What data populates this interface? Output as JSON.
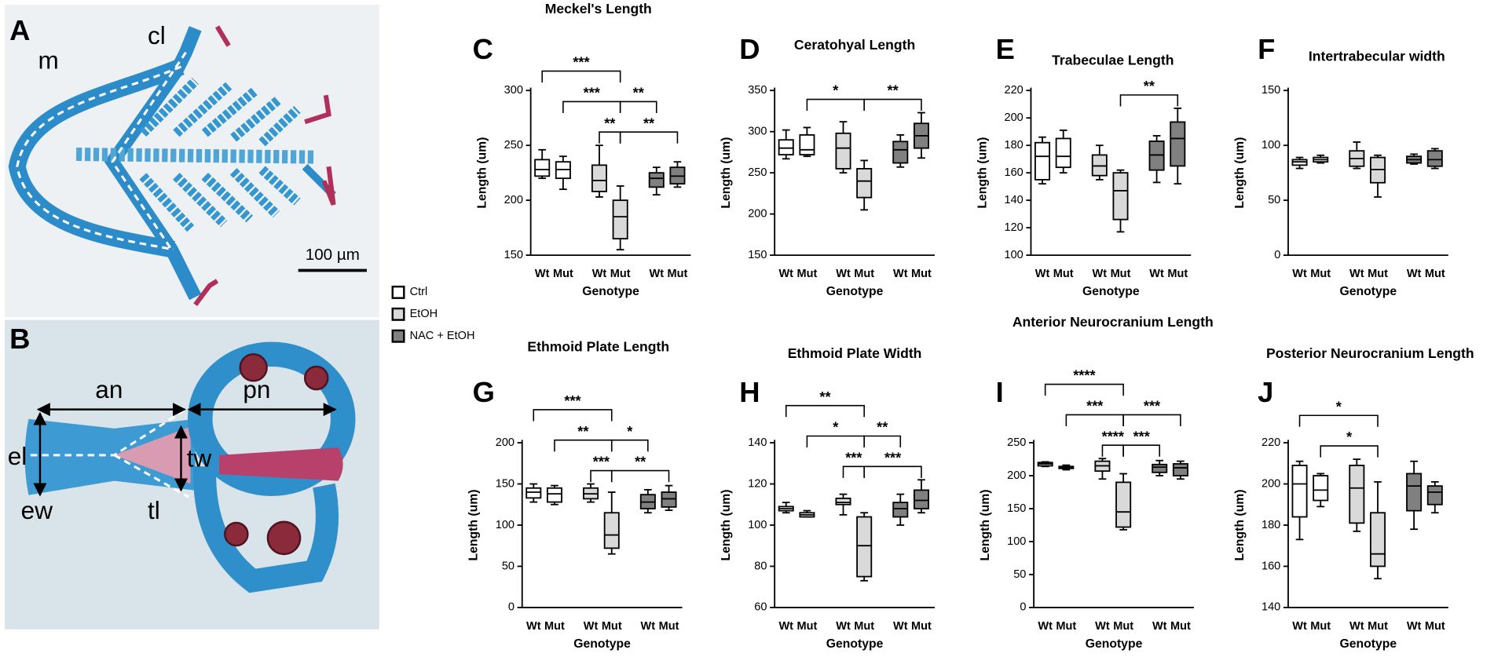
{
  "photo_a": {
    "letter": "A",
    "labels": [
      "m",
      "cl"
    ],
    "scale_bar": "100 µm"
  },
  "photo_b": {
    "letter": "B",
    "labels": [
      "an",
      "pn",
      "el",
      "ew",
      "tl",
      "tw"
    ]
  },
  "legend": [
    {
      "name": "Ctrl",
      "color": "#ffffff"
    },
    {
      "name": "EtOH",
      "color": "#d9d9d9"
    },
    {
      "name": "NAC + EtOH",
      "color": "#808080"
    }
  ],
  "chart_data": [
    {
      "type": "box",
      "panel": "C",
      "title": "Meckel's Length",
      "y_label": "Length (um)",
      "x_label": "Genotype",
      "categories": [
        "Wt",
        "Mut",
        "Wt",
        "Mut",
        "Wt",
        "Mut"
      ],
      "ylim": [
        150,
        300
      ],
      "yticks": [
        150,
        200,
        250,
        300
      ],
      "boxes": [
        {
          "min": 220,
          "q1": 222,
          "median": 228,
          "q3": 237,
          "max": 246
        },
        {
          "min": 210,
          "q1": 220,
          "median": 228,
          "q3": 235,
          "max": 240
        },
        {
          "min": 203,
          "q1": 208,
          "median": 218,
          "q3": 232,
          "max": 250
        },
        {
          "min": 155,
          "q1": 165,
          "median": 185,
          "q3": 200,
          "max": 213
        },
        {
          "min": 205,
          "q1": 212,
          "median": 220,
          "q3": 225,
          "max": 230
        },
        {
          "min": 212,
          "q1": 215,
          "median": 222,
          "q3": 230,
          "max": 235
        }
      ],
      "annotations": [
        {
          "label": "**",
          "from": 2,
          "to": 3
        },
        {
          "label": "**",
          "from": 3,
          "to": 5
        },
        {
          "label": "***",
          "from": 1,
          "to": 3
        },
        {
          "label": "**",
          "from": 3,
          "to": 4
        },
        {
          "label": "***",
          "from": 0,
          "to": 3
        }
      ]
    },
    {
      "type": "box",
      "panel": "D",
      "title": "Ceratohyal Length",
      "y_label": "Length (um)",
      "x_label": "Genotype",
      "categories": [
        "Wt",
        "Mut",
        "Wt",
        "Mut",
        "Wt",
        "Mut"
      ],
      "ylim": [
        150,
        350
      ],
      "yticks": [
        150,
        200,
        250,
        300,
        350
      ],
      "boxes": [
        {
          "min": 267,
          "q1": 272,
          "median": 280,
          "q3": 290,
          "max": 302
        },
        {
          "min": 270,
          "q1": 272,
          "median": 278,
          "q3": 296,
          "max": 305
        },
        {
          "min": 250,
          "q1": 255,
          "median": 280,
          "q3": 298,
          "max": 312
        },
        {
          "min": 205,
          "q1": 220,
          "median": 240,
          "q3": 255,
          "max": 265
        },
        {
          "min": 257,
          "q1": 262,
          "median": 278,
          "q3": 288,
          "max": 296
        },
        {
          "min": 268,
          "q1": 280,
          "median": 295,
          "q3": 310,
          "max": 323
        }
      ],
      "annotations": [
        {
          "label": "*",
          "from": 1,
          "to": 3
        },
        {
          "label": "**",
          "from": 3,
          "to": 5
        }
      ]
    },
    {
      "type": "box",
      "panel": "E",
      "title": "Trabeculae Length",
      "y_label": "Length (um)",
      "x_label": "Genotype",
      "categories": [
        "Wt",
        "Mut",
        "Wt",
        "Mut",
        "Wt",
        "Mut"
      ],
      "ylim": [
        100,
        220
      ],
      "yticks": [
        100,
        120,
        140,
        160,
        180,
        200,
        220
      ],
      "boxes": [
        {
          "min": 152,
          "q1": 155,
          "median": 172,
          "q3": 182,
          "max": 186
        },
        {
          "min": 160,
          "q1": 164,
          "median": 172,
          "q3": 185,
          "max": 191
        },
        {
          "min": 155,
          "q1": 158,
          "median": 165,
          "q3": 173,
          "max": 180
        },
        {
          "min": 117,
          "q1": 126,
          "median": 147,
          "q3": 160,
          "max": 162
        },
        {
          "min": 153,
          "q1": 162,
          "median": 173,
          "q3": 183,
          "max": 187
        },
        {
          "min": 152,
          "q1": 165,
          "median": 185,
          "q3": 197,
          "max": 207
        }
      ],
      "annotations": [
        {
          "label": "**",
          "from": 3,
          "to": 5
        }
      ]
    },
    {
      "type": "box",
      "panel": "F",
      "title": "Intertrabecular width",
      "y_label": "Length (um)",
      "x_label": "Genotype",
      "categories": [
        "Wt",
        "Mut",
        "Wt",
        "Mut",
        "Wt",
        "Mut"
      ],
      "ylim": [
        0,
        150
      ],
      "yticks": [
        0,
        50,
        100,
        150
      ],
      "boxes": [
        {
          "min": 79,
          "q1": 82,
          "median": 85,
          "q3": 87,
          "max": 89
        },
        {
          "min": 84,
          "q1": 85,
          "median": 87,
          "q3": 89,
          "max": 91
        },
        {
          "min": 79,
          "q1": 81,
          "median": 88,
          "q3": 95,
          "max": 103
        },
        {
          "min": 53,
          "q1": 66,
          "median": 78,
          "q3": 89,
          "max": 91
        },
        {
          "min": 83,
          "q1": 84,
          "median": 87,
          "q3": 90,
          "max": 92
        },
        {
          "min": 79,
          "q1": 81,
          "median": 87,
          "q3": 95,
          "max": 97
        }
      ],
      "annotations": []
    },
    {
      "type": "box",
      "panel": "G",
      "title": "Ethmoid Plate Length",
      "y_label": "Length (um)",
      "x_label": "Genotype",
      "categories": [
        "Wt",
        "Mut",
        "Wt",
        "Mut",
        "Wt",
        "Mut"
      ],
      "ylim": [
        0,
        200
      ],
      "yticks": [
        0,
        50,
        100,
        150,
        200
      ],
      "boxes": [
        {
          "min": 128,
          "q1": 133,
          "median": 140,
          "q3": 145,
          "max": 150
        },
        {
          "min": 125,
          "q1": 128,
          "median": 138,
          "q3": 145,
          "max": 148
        },
        {
          "min": 128,
          "q1": 132,
          "median": 138,
          "q3": 145,
          "max": 150
        },
        {
          "min": 65,
          "q1": 72,
          "median": 88,
          "q3": 115,
          "max": 140
        },
        {
          "min": 115,
          "q1": 120,
          "median": 128,
          "q3": 137,
          "max": 143
        },
        {
          "min": 118,
          "q1": 122,
          "median": 132,
          "q3": 140,
          "max": 148
        }
      ],
      "annotations": [
        {
          "label": "***",
          "from": 2,
          "to": 3
        },
        {
          "label": "**",
          "from": 3,
          "to": 5
        },
        {
          "label": "**",
          "from": 1,
          "to": 3
        },
        {
          "label": "*",
          "from": 3,
          "to": 4
        },
        {
          "label": "***",
          "from": 0,
          "to": 3
        }
      ]
    },
    {
      "type": "box",
      "panel": "H",
      "title": "Ethmoid Plate Width",
      "y_label": "Length (um)",
      "x_label": "Genotype",
      "categories": [
        "Wt",
        "Mut",
        "Wt",
        "Mut",
        "Wt",
        "Mut"
      ],
      "ylim": [
        60,
        140
      ],
      "yticks": [
        60,
        80,
        100,
        120,
        140
      ],
      "boxes": [
        {
          "min": 106,
          "q1": 107,
          "median": 108,
          "q3": 109,
          "max": 111
        },
        {
          "min": 104,
          "q1": 104,
          "median": 105,
          "q3": 106,
          "max": 107
        },
        {
          "min": 105,
          "q1": 110,
          "median": 111,
          "q3": 113,
          "max": 115
        },
        {
          "min": 73,
          "q1": 75,
          "median": 90,
          "q3": 104,
          "max": 106
        },
        {
          "min": 100,
          "q1": 104,
          "median": 108,
          "q3": 111,
          "max": 115
        },
        {
          "min": 106,
          "q1": 108,
          "median": 112,
          "q3": 117,
          "max": 122
        }
      ],
      "annotations": [
        {
          "label": "***",
          "from": 2,
          "to": 3
        },
        {
          "label": "***",
          "from": 3,
          "to": 5
        },
        {
          "label": "*",
          "from": 1,
          "to": 3
        },
        {
          "label": "**",
          "from": 3,
          "to": 4
        },
        {
          "label": "**",
          "from": 0,
          "to": 3
        }
      ]
    },
    {
      "type": "box",
      "panel": "I",
      "title": "Anterior Neurocranium Length",
      "y_label": "Length (um)",
      "x_label": "Genotype",
      "categories": [
        "Wt",
        "Mut",
        "Wt",
        "Mut",
        "Wt",
        "Mut"
      ],
      "ylim": [
        0,
        250
      ],
      "yticks": [
        0,
        50,
        100,
        150,
        200,
        250
      ],
      "boxes": [
        {
          "min": 214,
          "q1": 215,
          "median": 218,
          "q3": 220,
          "max": 221
        },
        {
          "min": 209,
          "q1": 211,
          "median": 212,
          "q3": 214,
          "max": 216
        },
        {
          "min": 195,
          "q1": 207,
          "median": 215,
          "q3": 222,
          "max": 226
        },
        {
          "min": 118,
          "q1": 122,
          "median": 145,
          "q3": 190,
          "max": 203
        },
        {
          "min": 200,
          "q1": 205,
          "median": 213,
          "q3": 217,
          "max": 223
        },
        {
          "min": 195,
          "q1": 200,
          "median": 212,
          "q3": 218,
          "max": 222
        }
      ],
      "annotations": [
        {
          "label": "****",
          "from": 2,
          "to": 3
        },
        {
          "label": "***",
          "from": 3,
          "to": 4
        },
        {
          "label": "***",
          "from": 1,
          "to": 3
        },
        {
          "label": "***",
          "from": 3,
          "to": 5
        },
        {
          "label": "****",
          "from": 0,
          "to": 3
        }
      ]
    },
    {
      "type": "box",
      "panel": "J",
      "title": "Posterior Neurocranium Length",
      "y_label": "Length (um)",
      "x_label": "Genotype",
      "categories": [
        "Wt",
        "Mut",
        "Wt",
        "Mut",
        "Wt",
        "Mut"
      ],
      "ylim": [
        140,
        220
      ],
      "yticks": [
        140,
        160,
        180,
        200,
        220
      ],
      "boxes": [
        {
          "min": 173,
          "q1": 184,
          "median": 200,
          "q3": 209,
          "max": 211
        },
        {
          "min": 189,
          "q1": 192,
          "median": 197,
          "q3": 204,
          "max": 205
        },
        {
          "min": 177,
          "q1": 181,
          "median": 198,
          "q3": 209,
          "max": 212
        },
        {
          "min": 154,
          "q1": 160,
          "median": 166,
          "q3": 186,
          "max": 201
        },
        {
          "min": 178,
          "q1": 187,
          "median": 199,
          "q3": 205,
          "max": 211
        },
        {
          "min": 186,
          "q1": 190,
          "median": 196,
          "q3": 199,
          "max": 201
        }
      ],
      "annotations": [
        {
          "label": "*",
          "from": 1,
          "to": 3
        },
        {
          "label": "*",
          "from": 0,
          "to": 3
        }
      ]
    }
  ]
}
